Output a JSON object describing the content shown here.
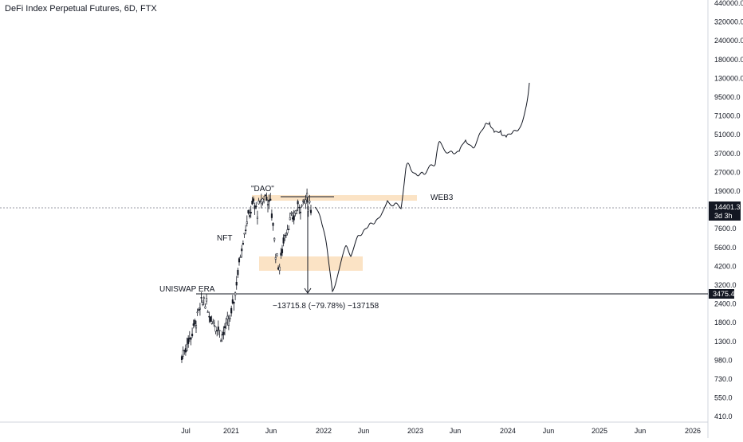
{
  "chart_data": {
    "type": "candlestick",
    "title": "DeFi Index Perpetual Futures, 6D, FTX",
    "y_scale": "log",
    "y_ticks": [
      "440000.0",
      "320000.0",
      "240000.0",
      "180000.0",
      "130000.0",
      "95000.0",
      "71000.0",
      "51000.0",
      "37000.0",
      "27000.0",
      "19000.0",
      "10000.0",
      "7600.0",
      "5600.0",
      "4200.0",
      "3200.0",
      "2400.0",
      "1800.0",
      "1300.0",
      "980.0",
      "730.0",
      "550.0",
      "410.0"
    ],
    "x_ticks": [
      "Jul",
      "2021",
      "Jun",
      "2022",
      "Jun",
      "2023",
      "Jun",
      "2024",
      "Jun",
      "2025",
      "Jun",
      "2026"
    ],
    "last_price": "14401.3",
    "countdown": "3d 3h",
    "support_level": "3475.4",
    "annotations": {
      "dao": "\"DAO\"",
      "nft": "NFT",
      "uniswap": "UNISWAP ERA",
      "web3": "WEB3",
      "measure": "−13715.8 (−79.78%) −137158"
    },
    "series": [
      {
        "values_approx": [
          1200,
          1450,
          1700,
          2100,
          2600,
          3200,
          2500,
          2200,
          2000,
          1700,
          2000,
          2300,
          3500,
          6000,
          9500,
          12500,
          15500,
          13500,
          16500,
          17500,
          15000,
          7000,
          5200,
          9000,
          11000,
          12000,
          14500,
          15500,
          16500,
          14400
        ]
      }
    ]
  },
  "colors": {
    "candle": "#131722",
    "zone": "#fbe3c5",
    "axis_tag": "#131722",
    "dotted": "#787b86"
  }
}
